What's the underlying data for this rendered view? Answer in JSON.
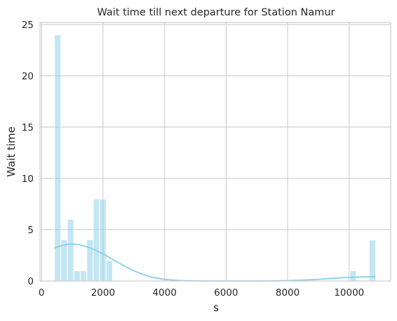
{
  "chart_data": {
    "type": "histogram",
    "title": "Wait time till next departure for Station Namur",
    "xlabel": "s",
    "ylabel": "Wait time",
    "xlim": [
      -50,
      11350
    ],
    "ylim": [
      0,
      25.2
    ],
    "x_ticks": [
      0,
      2000,
      4000,
      6000,
      8000,
      10000
    ],
    "x_tick_labels": [
      "0",
      "2000",
      "4000",
      "6000",
      "8000",
      "10000"
    ],
    "y_ticks": [
      0,
      5,
      10,
      15,
      20,
      25
    ],
    "y_tick_labels": [
      "0",
      "5",
      "10",
      "15",
      "20",
      "25"
    ],
    "grid": true,
    "bar_color": "#87CEEB",
    "kde_color": "#87CEEB",
    "bins": [
      {
        "x0": 420,
        "x1": 630,
        "count": 24
      },
      {
        "x0": 630,
        "x1": 840,
        "count": 4
      },
      {
        "x0": 840,
        "x1": 1050,
        "count": 6
      },
      {
        "x0": 1050,
        "x1": 1260,
        "count": 1
      },
      {
        "x0": 1260,
        "x1": 1470,
        "count": 1
      },
      {
        "x0": 1470,
        "x1": 1680,
        "count": 4
      },
      {
        "x0": 1680,
        "x1": 1890,
        "count": 8
      },
      {
        "x0": 1890,
        "x1": 2100,
        "count": 8
      },
      {
        "x0": 2100,
        "x1": 2310,
        "count": 2
      },
      {
        "x0": 10020,
        "x1": 10230,
        "count": 1
      },
      {
        "x0": 10650,
        "x1": 10860,
        "count": 4
      }
    ],
    "kde": {
      "x": [
        420,
        600,
        800,
        1000,
        1200,
        1400,
        1600,
        1800,
        2000,
        2200,
        2400,
        2700,
        3000,
        3300,
        3600,
        4000,
        4500,
        5000,
        5500,
        6000,
        6500,
        7000,
        7500,
        8000,
        8500,
        9000,
        9500,
        10000,
        10300,
        10600,
        10860
      ],
      "y": [
        3.2,
        3.4,
        3.55,
        3.6,
        3.55,
        3.4,
        3.2,
        2.95,
        2.65,
        2.3,
        1.95,
        1.45,
        1.0,
        0.63,
        0.36,
        0.15,
        0.04,
        0.01,
        0.0,
        0.0,
        0.0,
        0.0,
        0.01,
        0.03,
        0.08,
        0.16,
        0.26,
        0.35,
        0.39,
        0.4,
        0.4
      ]
    }
  }
}
